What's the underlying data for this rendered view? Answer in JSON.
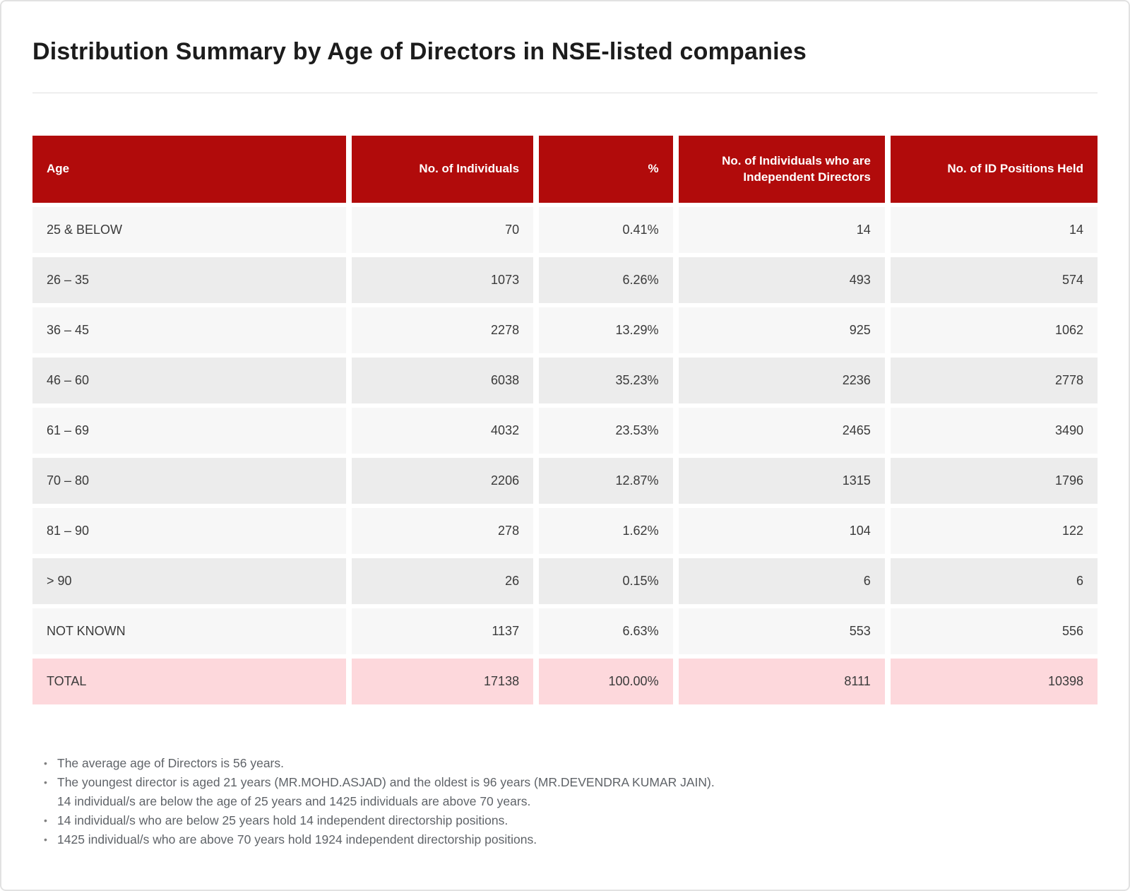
{
  "page": {
    "title": "Distribution Summary by Age of Directors in NSE-listed companies"
  },
  "colors": {
    "header_bg": "#b10b0b",
    "header_text": "#ffffff",
    "row_light": "#f7f7f7",
    "row_dark": "#ececec",
    "total_bg": "#fdd8dc",
    "title_text": "#1c1c1c",
    "note_text": "#5f6368"
  },
  "table": {
    "columns": [
      {
        "key": "age",
        "label": "Age",
        "align": "left"
      },
      {
        "key": "individuals",
        "label": "No. of Individuals",
        "align": "right"
      },
      {
        "key": "percent",
        "label": "%",
        "align": "right"
      },
      {
        "key": "independent-directors",
        "label": "No. of Individuals who are Independent Directors",
        "align": "right"
      },
      {
        "key": "id-positions",
        "label": "No. of ID Positions Held",
        "align": "right"
      }
    ],
    "rows": [
      {
        "cells": [
          "25 & BELOW",
          "70",
          "0.41%",
          "14",
          "14"
        ]
      },
      {
        "cells": [
          "26 – 35",
          "1073",
          "6.26%",
          "493",
          "574"
        ]
      },
      {
        "cells": [
          "36 – 45",
          "2278",
          "13.29%",
          "925",
          "1062"
        ]
      },
      {
        "cells": [
          "46 – 60",
          "6038",
          "35.23%",
          "2236",
          "2778"
        ]
      },
      {
        "cells": [
          "61 – 69",
          "4032",
          "23.53%",
          "2465",
          "3490"
        ]
      },
      {
        "cells": [
          "70 – 80",
          "2206",
          "12.87%",
          "1315",
          "1796"
        ]
      },
      {
        "cells": [
          "81 – 90",
          "278",
          "1.62%",
          "104",
          "122"
        ]
      },
      {
        "cells": [
          "> 90",
          "26",
          "0.15%",
          "6",
          "6"
        ]
      },
      {
        "cells": [
          "NOT KNOWN",
          "1137",
          "6.63%",
          "553",
          "556"
        ]
      }
    ],
    "total": {
      "cells": [
        "TOTAL",
        "17138",
        "100.00%",
        "8111",
        "10398"
      ]
    }
  },
  "notes": [
    {
      "lines": [
        "The average age of Directors is 56 years."
      ]
    },
    {
      "lines": [
        "The youngest director is aged 21 years (MR.MOHD.ASJAD) and the oldest is 96 years (MR.DEVENDRA KUMAR JAIN).",
        "14 individual/s are below the age of 25 years and 1425 individuals are above 70 years."
      ]
    },
    {
      "lines": [
        "14 individual/s who are below 25 years hold 14 independent directorship positions."
      ]
    },
    {
      "lines": [
        "1425 individual/s who are above 70 years hold 1924 independent directorship positions."
      ]
    }
  ]
}
